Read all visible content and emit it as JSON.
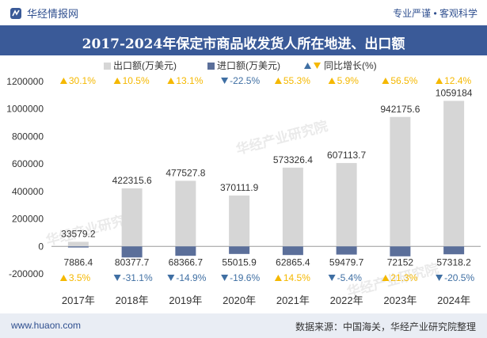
{
  "header": {
    "brand": "华经情报网",
    "tagline": "专业严谨 • 客观科学",
    "title": "2017-2024年保定市商品收发货人所在地进、出口额"
  },
  "legend": {
    "export": "出口额(万美元)",
    "import": "进口额(万美元)",
    "growth": "同比增长(%)"
  },
  "watermark": "华经产业研究院",
  "footer": {
    "left": "www.huaon.com",
    "right": "数据来源：中国海关，华经产业研究院整理"
  },
  "colors": {
    "export": "#d6d6d6",
    "import": "#5b6f9a",
    "up": "#f5b800",
    "down": "#3f6fa3",
    "header": "#3a5a98"
  },
  "chart_data": {
    "type": "bar",
    "categories": [
      "2017年",
      "2018年",
      "2019年",
      "2020年",
      "2021年",
      "2022年",
      "2023年",
      "2024年"
    ],
    "series": [
      {
        "name": "出口额(万美元)",
        "values": [
          33579.2,
          422315.6,
          477527.8,
          370111.9,
          573326.4,
          607113.7,
          942175.6,
          1059184
        ]
      },
      {
        "name": "进口额(万美元)",
        "values": [
          7886.4,
          80377.7,
          68366.7,
          55015.9,
          62865.4,
          59479.7,
          72152,
          57318.2
        ]
      }
    ],
    "export_growth": [
      30.1,
      10.5,
      13.1,
      -22.5,
      55.3,
      5.9,
      56.5,
      12.4
    ],
    "import_growth": [
      3.5,
      -31.1,
      -14.9,
      -19.6,
      14.5,
      -5.4,
      21.3,
      -20.5
    ],
    "export_labels": [
      "33579.2",
      "422315.6",
      "477527.8",
      "370111.9",
      "573326.4",
      "607113.7",
      "942175.6",
      "1059184"
    ],
    "import_labels": [
      "7886.4",
      "80377.7",
      "68366.7",
      "55015.9",
      "62865.4",
      "59479.7",
      "72152",
      "57318.2"
    ],
    "export_growth_labels": [
      "30.1%",
      "10.5%",
      "13.1%",
      "-22.5%",
      "55.3%",
      "5.9%",
      "56.5%",
      "12.4%"
    ],
    "import_growth_labels": [
      "3.5%",
      "-31.1%",
      "-14.9%",
      "-19.6%",
      "14.5%",
      "-5.4%",
      "21.3%",
      "-20.5%"
    ],
    "yticks": [
      -200000,
      0,
      200000,
      400000,
      600000,
      800000,
      1000000,
      1200000
    ],
    "ytick_labels": [
      "-200000",
      "0",
      "200000",
      "400000",
      "600000",
      "800000",
      "1000000",
      "1200000"
    ],
    "ylim": [
      -200000,
      1200000
    ],
    "title": "2017-2024年保定市商品收发货人所在地进、出口额",
    "xlabel": "",
    "ylabel": ""
  }
}
